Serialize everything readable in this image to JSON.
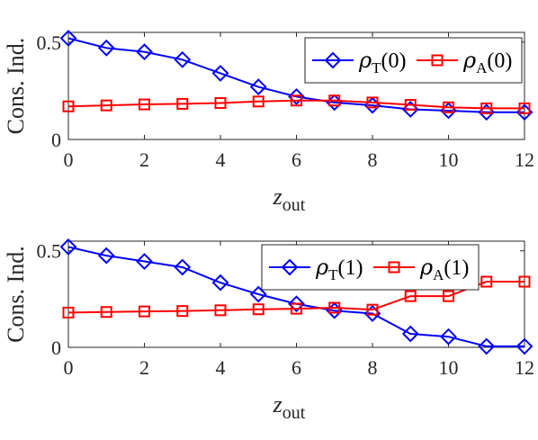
{
  "chart_data": [
    {
      "type": "line",
      "title": "",
      "xlabel": {
        "main": "z",
        "sub": "out"
      },
      "ylabel": "Cons. Ind.",
      "xlim": [
        0,
        12
      ],
      "ylim": [
        0,
        0.55
      ],
      "xticks": [
        "0",
        "2",
        "4",
        "6",
        "8",
        "10",
        "12"
      ],
      "yticks": [
        {
          "value": 0,
          "label": "0"
        },
        {
          "value": 0.5,
          "label": "0.5"
        }
      ],
      "grid": false,
      "legend_position": "top-right",
      "x": [
        0,
        1,
        2,
        3,
        4,
        5,
        6,
        7,
        8,
        9,
        10,
        11,
        12
      ],
      "series": [
        {
          "symbol": "ρ",
          "sub": "T",
          "arg": "(0)",
          "color": "#0000ff",
          "marker": "diamond",
          "values": [
            0.52,
            0.47,
            0.45,
            0.41,
            0.34,
            0.27,
            0.22,
            0.19,
            0.175,
            0.155,
            0.148,
            0.14,
            0.14
          ]
        },
        {
          "symbol": "ρ",
          "sub": "A",
          "arg": "(0)",
          "color": "#ff0000",
          "marker": "square",
          "values": [
            0.17,
            0.175,
            0.18,
            0.183,
            0.187,
            0.195,
            0.2,
            0.2,
            0.19,
            0.178,
            0.165,
            0.16,
            0.16
          ]
        }
      ]
    },
    {
      "type": "line",
      "title": "",
      "xlabel": {
        "main": "z",
        "sub": "out"
      },
      "ylabel": "Cons. Ind.",
      "xlim": [
        0,
        12
      ],
      "ylim": [
        0,
        0.55
      ],
      "xticks": [
        "0",
        "2",
        "4",
        "6",
        "8",
        "10",
        "12"
      ],
      "yticks": [
        {
          "value": 0,
          "label": "0"
        },
        {
          "value": 0.5,
          "label": "0.5"
        }
      ],
      "grid": false,
      "legend_position": "top-right",
      "x": [
        0,
        1,
        2,
        3,
        4,
        5,
        6,
        7,
        8,
        9,
        10,
        11,
        12
      ],
      "series": [
        {
          "symbol": "ρ",
          "sub": "T",
          "arg": "(1)",
          "color": "#0000ff",
          "marker": "diamond",
          "values": [
            0.52,
            0.475,
            0.445,
            0.415,
            0.335,
            0.275,
            0.225,
            0.19,
            0.175,
            0.07,
            0.055,
            0.005,
            0.005
          ]
        },
        {
          "symbol": "ρ",
          "sub": "A",
          "arg": "(1)",
          "color": "#ff0000",
          "marker": "square",
          "values": [
            0.18,
            0.183,
            0.186,
            0.188,
            0.192,
            0.197,
            0.2,
            0.205,
            0.195,
            0.265,
            0.265,
            0.34,
            0.34
          ]
        }
      ]
    }
  ]
}
